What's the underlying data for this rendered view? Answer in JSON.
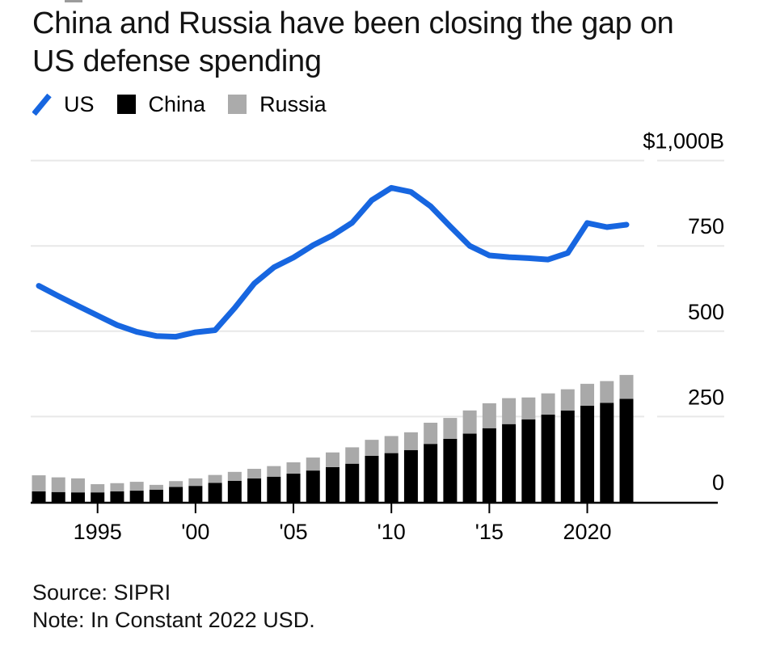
{
  "page": {
    "title": {
      "line1": "China and Russia have been closing the gap on",
      "line2": "US defense spending"
    }
  },
  "legend": {
    "items": [
      {
        "label": "US",
        "color": "#1766e0",
        "swatch": "line-icon"
      },
      {
        "label": "China",
        "color": "#000000",
        "swatch": "square-icon"
      },
      {
        "label": "Russia",
        "color": "#ababab",
        "swatch": "square-icon"
      }
    ]
  },
  "chart_data": {
    "type": "combo: line + stacked bar",
    "title": "China and Russia have been closing the gap on US defense spending",
    "unit": "billions of constant 2022 USD",
    "grid": "horizontal",
    "legend_position": "top-left",
    "x": [
      1992,
      1993,
      1994,
      1995,
      1996,
      1997,
      1998,
      1999,
      2000,
      2001,
      2002,
      2003,
      2004,
      2005,
      2006,
      2007,
      2008,
      2009,
      2010,
      2011,
      2012,
      2013,
      2014,
      2015,
      2016,
      2017,
      2018,
      2019,
      2020,
      2021,
      2022
    ],
    "series": [
      {
        "name": "US",
        "type": "line",
        "color": "#1766e0",
        "values": [
          633,
          603,
          574,
          546,
          518,
          498,
          486,
          484,
          497,
          503,
          568,
          640,
          687,
          716,
          752,
          781,
          818,
          884,
          920,
          908,
          866,
          807,
          750,
          722,
          717,
          714,
          710,
          729,
          817,
          805,
          812
        ]
      },
      {
        "name": "China",
        "type": "bar",
        "color": "#000000",
        "values": [
          31,
          29,
          28,
          28,
          31,
          33,
          36,
          44,
          47,
          56,
          62,
          69,
          74,
          83,
          92,
          102,
          112,
          135,
          143,
          152,
          170,
          185,
          200,
          216,
          228,
          242,
          256,
          268,
          282,
          290,
          302
        ]
      },
      {
        "name": "Russia",
        "type": "bar",
        "color": "#a9a9a9",
        "values": [
          47,
          43,
          41,
          24,
          24,
          26,
          14,
          17,
          22,
          23,
          26,
          28,
          31,
          33,
          38,
          43,
          48,
          47,
          50,
          52,
          62,
          61,
          68,
          73,
          76,
          64,
          62,
          62,
          64,
          64,
          70
        ]
      }
    ],
    "y_axis": {
      "side": "right",
      "range": [
        0,
        1050
      ],
      "ticks": [
        {
          "value": 1000,
          "label": "$1,000B"
        },
        {
          "value": 750,
          "label": "750"
        },
        {
          "value": 500,
          "label": "500"
        },
        {
          "value": 250,
          "label": "250"
        },
        {
          "value": 0,
          "label": "0"
        }
      ]
    },
    "x_axis": {
      "ticks": [
        {
          "value": 1995,
          "label": "1995"
        },
        {
          "value": 2000,
          "label": "'00"
        },
        {
          "value": 2005,
          "label": "'05"
        },
        {
          "value": 2010,
          "label": "'10"
        },
        {
          "value": 2015,
          "label": "'15"
        },
        {
          "value": 2020,
          "label": "2020"
        }
      ]
    },
    "colors": {
      "us_line": "#1766e0",
      "china_bar": "#000000",
      "russia_bar": "#a9a9a9",
      "gridline": "#e8e8e8",
      "axis": "#000000"
    }
  },
  "footer": {
    "source": "Source: SIPRI",
    "note": "Note: In Constant 2022 USD."
  }
}
